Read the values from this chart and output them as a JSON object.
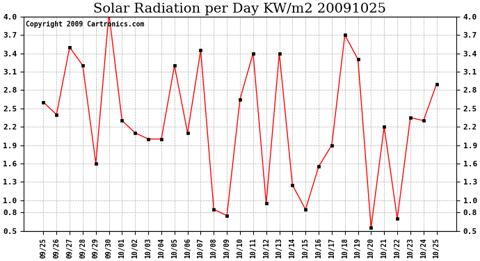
{
  "title": "Solar Radiation per Day KW/m2 20091025",
  "copyright_text": "Copyright 2009 Cartronics.com",
  "dates": [
    "09/25",
    "09/26",
    "09/27",
    "09/28",
    "09/29",
    "09/30",
    "10/01",
    "10/02",
    "10/03",
    "10/04",
    "10/05",
    "10/06",
    "10/07",
    "10/08",
    "10/09",
    "10/10",
    "10/11",
    "10/12",
    "10/13",
    "10/14",
    "10/15",
    "10/16",
    "10/17",
    "10/18",
    "10/19",
    "10/20",
    "10/21",
    "10/22",
    "10/23",
    "10/24",
    "10/25"
  ],
  "values": [
    2.6,
    2.4,
    3.5,
    3.2,
    1.6,
    4.05,
    2.3,
    2.1,
    2.0,
    2.0,
    3.2,
    2.1,
    3.45,
    0.85,
    0.75,
    2.65,
    3.4,
    0.95,
    3.4,
    1.25,
    0.85,
    1.55,
    1.9,
    3.7,
    3.3,
    0.55,
    2.2,
    0.7,
    2.35,
    2.3,
    2.9
  ],
  "line_color": "#FF0000",
  "marker_color": "#000000",
  "bg_color": "#FFFFFF",
  "grid_color": "#999999",
  "ylim": [
    0.5,
    4.0
  ],
  "yticks": [
    0.5,
    0.8,
    1.0,
    1.3,
    1.6,
    1.9,
    2.2,
    2.5,
    2.8,
    3.1,
    3.4,
    3.7,
    4.0
  ],
  "title_fontsize": 14,
  "copyright_fontsize": 7
}
